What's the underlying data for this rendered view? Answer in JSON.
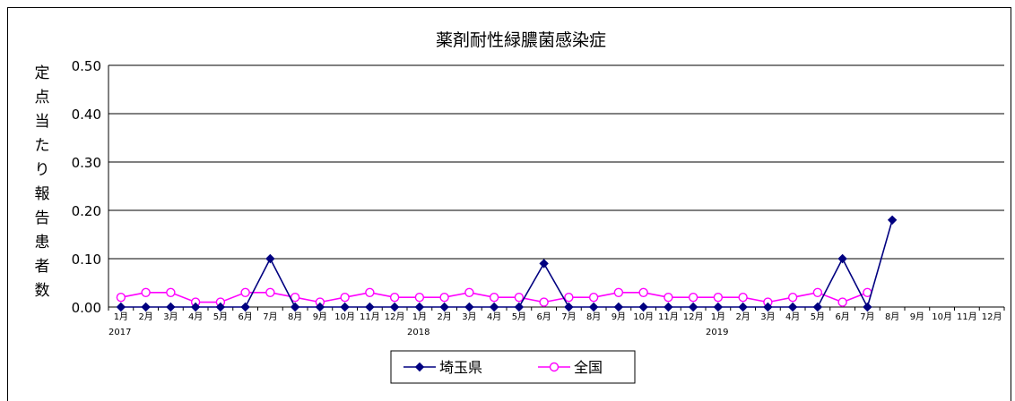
{
  "chart_data": {
    "type": "line",
    "title": "薬剤耐性緑膿菌感染症",
    "ylabel": "定点当たり報告患者数",
    "ylim": [
      0,
      0.5
    ],
    "yticks": [
      "0.00",
      "0.10",
      "0.20",
      "0.30",
      "0.40",
      "0.50"
    ],
    "categories": [
      "1月",
      "2月",
      "3月",
      "4月",
      "5月",
      "6月",
      "7月",
      "8月",
      "9月",
      "10月",
      "11月",
      "12月",
      "1月",
      "2月",
      "3月",
      "4月",
      "5月",
      "6月",
      "7月",
      "8月",
      "9月",
      "10月",
      "11月",
      "12月",
      "1月",
      "2月",
      "3月",
      "4月",
      "5月",
      "6月",
      "7月",
      "8月",
      "9月",
      "10月",
      "11月",
      "12月"
    ],
    "year_labels": [
      {
        "index": 0,
        "label": "2017"
      },
      {
        "index": 12,
        "label": "2018"
      },
      {
        "index": 24,
        "label": "2019"
      }
    ],
    "series": [
      {
        "name": "埼玉県",
        "color": "#000080",
        "marker": "diamond",
        "values": [
          0,
          0,
          0,
          0,
          0,
          0,
          0.1,
          0,
          0,
          0,
          0,
          0,
          0,
          0,
          0,
          0,
          0,
          0.09,
          0,
          0,
          0,
          0,
          0,
          0,
          0,
          0,
          0,
          0,
          0,
          0.1,
          0,
          0.18,
          null,
          null,
          null,
          null
        ]
      },
      {
        "name": "全国",
        "color": "#ff00ff",
        "marker": "circle",
        "values": [
          0.02,
          0.03,
          0.03,
          0.01,
          0.01,
          0.03,
          0.03,
          0.02,
          0.01,
          0.02,
          0.03,
          0.02,
          0.02,
          0.02,
          0.03,
          0.02,
          0.02,
          0.01,
          0.02,
          0.02,
          0.03,
          0.03,
          0.02,
          0.02,
          0.02,
          0.02,
          0.01,
          0.02,
          0.03,
          0.01,
          0.03,
          null,
          null,
          null,
          null,
          null
        ]
      }
    ],
    "grid": true,
    "legend": "bottom"
  }
}
